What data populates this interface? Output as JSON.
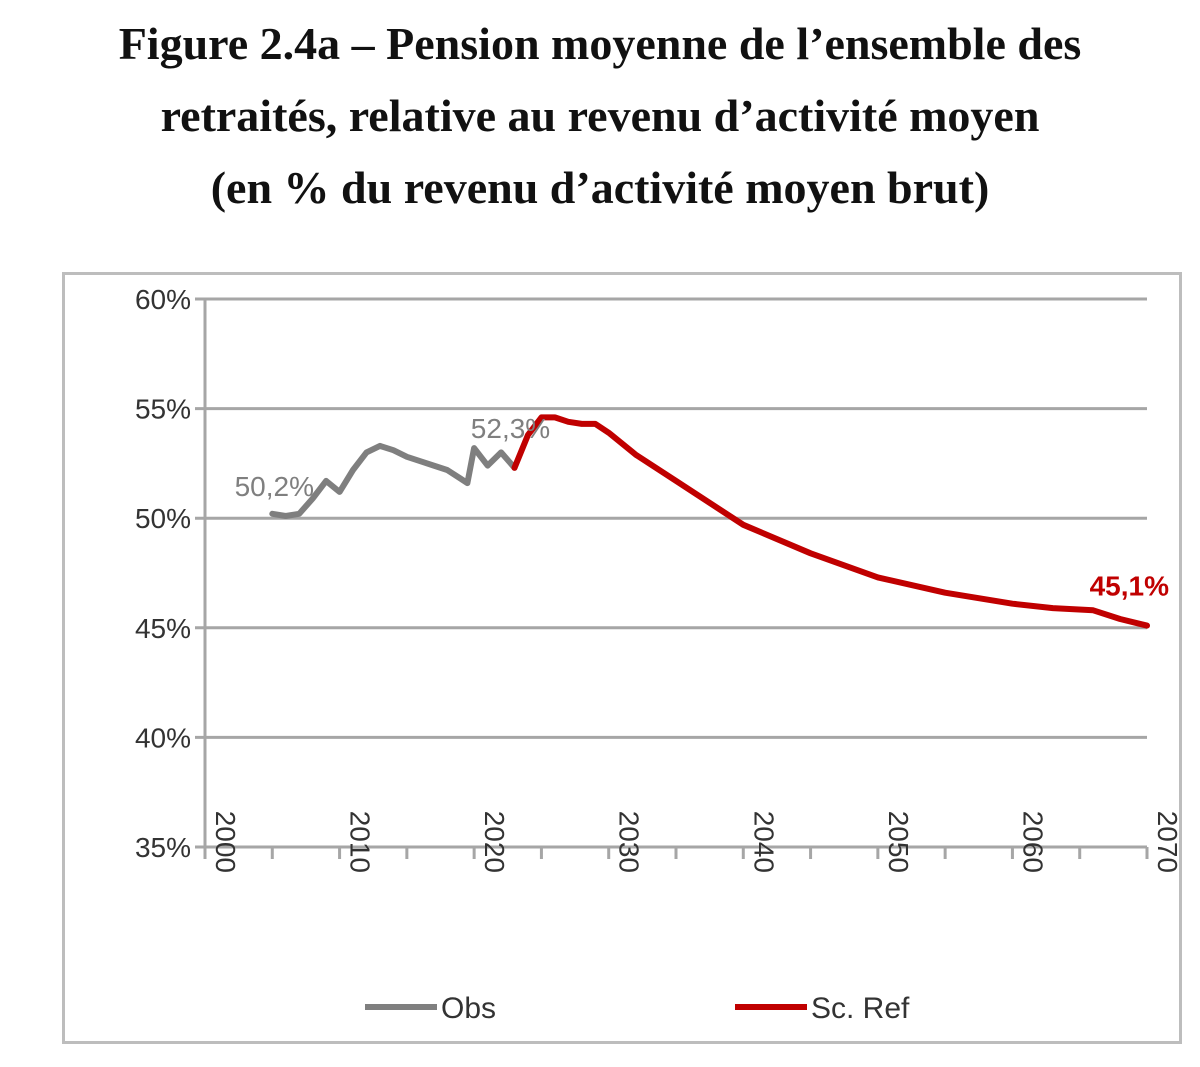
{
  "title_lines": [
    "Figure 2.4a – Pension moyenne de l’ensemble des",
    "retraités, relative au revenu d’activité moyen",
    "(en % du revenu d’activité moyen brut)"
  ],
  "colors": {
    "obs": "#7f7f7f",
    "ref": "#c00000",
    "grid": "#a6a6a6",
    "axis": "#a6a6a6"
  },
  "chart_data": {
    "type": "line",
    "title": "Figure 2.4a – Pension moyenne de l’ensemble des retraités, relative au revenu d’activité moyen (en % du revenu d’activité moyen brut)",
    "xlabel": "",
    "ylabel": "",
    "xlim": [
      2000,
      2070
    ],
    "ylim": [
      35,
      60
    ],
    "x_ticks": [
      "2000",
      "2010",
      "2020",
      "2030",
      "2040",
      "2050",
      "2060",
      "2070"
    ],
    "y_ticks": [
      "35%",
      "40%",
      "45%",
      "50%",
      "55%",
      "60%"
    ],
    "grid": true,
    "legend_position": "bottom",
    "series": [
      {
        "name": "Obs",
        "color": "#7f7f7f",
        "x": [
          2005,
          2006,
          2007,
          2008,
          2009,
          2010,
          2011,
          2012,
          2013,
          2014,
          2015,
          2016,
          2017,
          2018,
          2019,
          2019.5,
          2020,
          2021,
          2022,
          2023
        ],
        "y": [
          50.2,
          50.1,
          50.2,
          50.9,
          51.7,
          51.2,
          52.2,
          53.0,
          53.3,
          53.1,
          52.8,
          52.6,
          52.4,
          52.2,
          51.8,
          51.6,
          53.2,
          52.4,
          53.0,
          52.3
        ]
      },
      {
        "name": "Sc. Ref",
        "color": "#c00000",
        "x": [
          2023,
          2024,
          2025,
          2026,
          2027,
          2028,
          2029,
          2030,
          2032,
          2035,
          2040,
          2045,
          2050,
          2055,
          2060,
          2063,
          2066,
          2068,
          2070
        ],
        "y": [
          52.3,
          53.8,
          54.6,
          54.6,
          54.4,
          54.3,
          54.3,
          53.9,
          52.9,
          51.7,
          49.7,
          48.4,
          47.3,
          46.6,
          46.1,
          45.9,
          45.8,
          45.4,
          45.1
        ]
      }
    ],
    "annotations": [
      {
        "text": "50,2%",
        "x": 2005,
        "y": 50.2,
        "series": "Obs"
      },
      {
        "text": "52,3%",
        "x": 2023,
        "y": 52.3,
        "series": "Obs"
      },
      {
        "text": "45,1%",
        "x": 2070,
        "y": 45.1,
        "series": "Sc. Ref"
      }
    ]
  }
}
